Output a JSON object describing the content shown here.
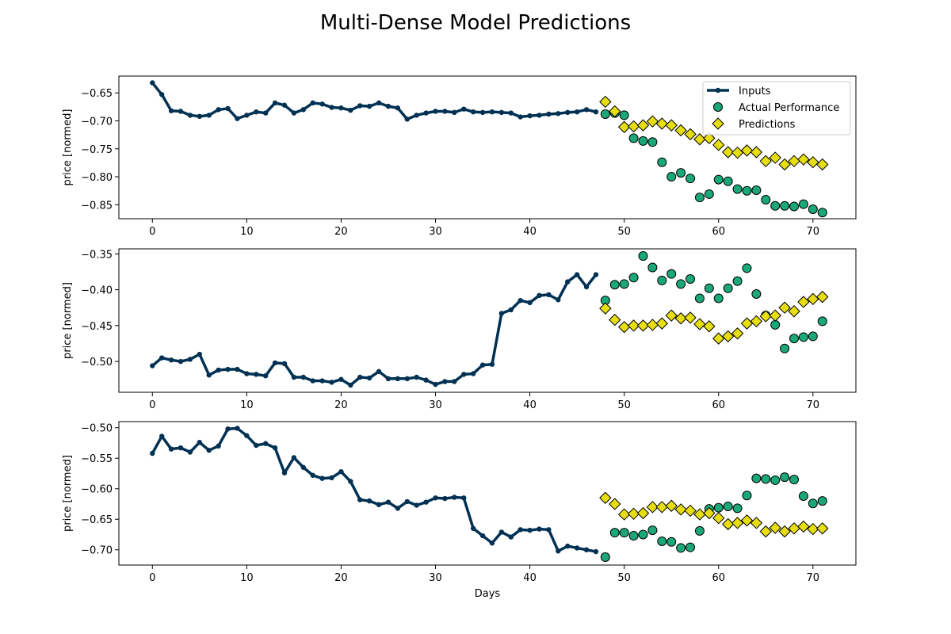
{
  "figure": {
    "title": "Multi-Dense Model Predictions",
    "colors": {
      "inputs": "#003153",
      "actual": "#1aa879",
      "predictions": "#e6dd12",
      "marker_edge": "#000000"
    }
  },
  "chart_data": [
    {
      "type": "line",
      "title": "",
      "xlabel": "",
      "ylabel": "price [normed]",
      "xlim": [
        -3.55,
        74.55
      ],
      "ylim": [
        -0.875,
        -0.62
      ],
      "xticks": [
        0,
        10,
        20,
        30,
        40,
        50,
        60,
        70
      ],
      "xtick_labels": [
        "0",
        "10",
        "20",
        "30",
        "40",
        "50",
        "60",
        "70"
      ],
      "yticks": [
        -0.85,
        -0.8,
        -0.75,
        -0.7,
        -0.65
      ],
      "ytick_labels": [
        "−0.85",
        "−0.80",
        "−0.75",
        "−0.70",
        "−0.65"
      ],
      "grid": false,
      "legend": {
        "placement": "upper right",
        "entries": [
          "Inputs",
          "Actual Performance",
          "Predictions"
        ]
      },
      "series": [
        {
          "name": "Inputs",
          "style": "line-with-dots",
          "x": [
            0,
            1,
            2,
            3,
            4,
            5,
            6,
            7,
            8,
            9,
            10,
            11,
            12,
            13,
            14,
            15,
            16,
            17,
            18,
            19,
            20,
            21,
            22,
            23,
            24,
            25,
            26,
            27,
            28,
            29,
            30,
            31,
            32,
            33,
            34,
            35,
            36,
            37,
            38,
            39,
            40,
            41,
            42,
            43,
            44,
            45,
            46,
            47
          ],
          "y": [
            -0.632,
            -0.653,
            -0.682,
            -0.683,
            -0.69,
            -0.692,
            -0.69,
            -0.68,
            -0.678,
            -0.696,
            -0.69,
            -0.684,
            -0.686,
            -0.668,
            -0.672,
            -0.686,
            -0.68,
            -0.668,
            -0.67,
            -0.676,
            -0.677,
            -0.681,
            -0.673,
            -0.674,
            -0.668,
            -0.674,
            -0.677,
            -0.697,
            -0.69,
            -0.686,
            -0.683,
            -0.683,
            -0.685,
            -0.679,
            -0.684,
            -0.685,
            -0.684,
            -0.685,
            -0.686,
            -0.693,
            -0.691,
            -0.69,
            -0.688,
            -0.687,
            -0.685,
            -0.684,
            -0.68,
            -0.684
          ]
        },
        {
          "name": "Actual Performance",
          "style": "scatter-circle",
          "x": [
            48,
            49,
            50,
            51,
            52,
            53,
            54,
            55,
            56,
            57,
            58,
            59,
            60,
            61,
            62,
            63,
            64,
            65,
            66,
            67,
            68,
            69,
            70,
            71
          ],
          "y": [
            -0.688,
            -0.686,
            -0.69,
            -0.731,
            -0.736,
            -0.738,
            -0.774,
            -0.8,
            -0.793,
            -0.803,
            -0.837,
            -0.831,
            -0.805,
            -0.808,
            -0.822,
            -0.825,
            -0.824,
            -0.841,
            -0.852,
            -0.852,
            -0.853,
            -0.849,
            -0.858,
            -0.864
          ]
        },
        {
          "name": "Predictions",
          "style": "scatter-diamond",
          "x": [
            48,
            49,
            50,
            51,
            52,
            53,
            54,
            55,
            56,
            57,
            58,
            59,
            60,
            61,
            62,
            63,
            64,
            65,
            66,
            67,
            68,
            69,
            70,
            71
          ],
          "y": [
            -0.666,
            -0.683,
            -0.711,
            -0.71,
            -0.708,
            -0.701,
            -0.705,
            -0.708,
            -0.717,
            -0.724,
            -0.733,
            -0.731,
            -0.743,
            -0.756,
            -0.757,
            -0.753,
            -0.756,
            -0.772,
            -0.766,
            -0.778,
            -0.772,
            -0.769,
            -0.774,
            -0.778
          ]
        }
      ]
    },
    {
      "type": "line",
      "title": "",
      "xlabel": "",
      "ylabel": "price [normed]",
      "xlim": [
        -3.55,
        74.55
      ],
      "ylim": [
        -0.543,
        -0.343
      ],
      "xticks": [
        0,
        10,
        20,
        30,
        40,
        50,
        60,
        70
      ],
      "xtick_labels": [
        "0",
        "10",
        "20",
        "30",
        "40",
        "50",
        "60",
        "70"
      ],
      "yticks": [
        -0.5,
        -0.45,
        -0.4,
        -0.35
      ],
      "ytick_labels": [
        "−0.50",
        "−0.45",
        "−0.40",
        "−0.35"
      ],
      "grid": false,
      "legend": null,
      "series": [
        {
          "name": "Inputs",
          "style": "line-with-dots",
          "x": [
            0,
            1,
            2,
            3,
            4,
            5,
            6,
            7,
            8,
            9,
            10,
            11,
            12,
            13,
            14,
            15,
            16,
            17,
            18,
            19,
            20,
            21,
            22,
            23,
            24,
            25,
            26,
            27,
            28,
            29,
            30,
            31,
            32,
            33,
            34,
            35,
            36,
            37,
            38,
            39,
            40,
            41,
            42,
            43,
            44,
            45,
            46,
            47
          ],
          "y": [
            -0.506,
            -0.495,
            -0.498,
            -0.5,
            -0.497,
            -0.49,
            -0.519,
            -0.512,
            -0.511,
            -0.511,
            -0.517,
            -0.518,
            -0.52,
            -0.502,
            -0.503,
            -0.522,
            -0.522,
            -0.527,
            -0.527,
            -0.529,
            -0.525,
            -0.533,
            -0.522,
            -0.523,
            -0.514,
            -0.524,
            -0.524,
            -0.524,
            -0.522,
            -0.526,
            -0.532,
            -0.528,
            -0.528,
            -0.518,
            -0.517,
            -0.505,
            -0.504,
            -0.433,
            -0.428,
            -0.415,
            -0.418,
            -0.408,
            -0.407,
            -0.414,
            -0.389,
            -0.379,
            -0.396,
            -0.379
          ]
        },
        {
          "name": "Actual Performance",
          "style": "scatter-circle",
          "x": [
            48,
            49,
            50,
            51,
            52,
            53,
            54,
            55,
            56,
            57,
            58,
            59,
            60,
            61,
            62,
            63,
            64,
            65,
            66,
            67,
            68,
            69,
            70,
            71
          ],
          "y": [
            -0.415,
            -0.393,
            -0.392,
            -0.383,
            -0.353,
            -0.369,
            -0.387,
            -0.378,
            -0.392,
            -0.385,
            -0.412,
            -0.398,
            -0.412,
            -0.398,
            -0.388,
            -0.37,
            -0.406,
            -0.436,
            -0.449,
            -0.482,
            -0.468,
            -0.466,
            -0.465,
            -0.444
          ]
        },
        {
          "name": "Predictions",
          "style": "scatter-diamond",
          "x": [
            48,
            49,
            50,
            51,
            52,
            53,
            54,
            55,
            56,
            57,
            58,
            59,
            60,
            61,
            62,
            63,
            64,
            65,
            66,
            67,
            68,
            69,
            70,
            71
          ],
          "y": [
            -0.426,
            -0.442,
            -0.452,
            -0.45,
            -0.45,
            -0.449,
            -0.447,
            -0.436,
            -0.44,
            -0.439,
            -0.448,
            -0.451,
            -0.468,
            -0.465,
            -0.461,
            -0.447,
            -0.444,
            -0.437,
            -0.436,
            -0.425,
            -0.43,
            -0.417,
            -0.413,
            -0.41
          ]
        }
      ]
    },
    {
      "type": "line",
      "title": "",
      "xlabel": "Days",
      "ylabel": "price [normed]",
      "xlim": [
        -3.55,
        74.55
      ],
      "ylim": [
        -0.725,
        -0.49
      ],
      "xticks": [
        0,
        10,
        20,
        30,
        40,
        50,
        60,
        70
      ],
      "xtick_labels": [
        "0",
        "10",
        "20",
        "30",
        "40",
        "50",
        "60",
        "70"
      ],
      "yticks": [
        -0.7,
        -0.65,
        -0.6,
        -0.55,
        -0.5
      ],
      "ytick_labels": [
        "−0.70",
        "−0.65",
        "−0.60",
        "−0.55",
        "−0.50"
      ],
      "grid": false,
      "legend": null,
      "series": [
        {
          "name": "Inputs",
          "style": "line-with-dots",
          "x": [
            0,
            1,
            2,
            3,
            4,
            5,
            6,
            7,
            8,
            9,
            10,
            11,
            12,
            13,
            14,
            15,
            16,
            17,
            18,
            19,
            20,
            21,
            22,
            23,
            24,
            25,
            26,
            27,
            28,
            29,
            30,
            31,
            32,
            33,
            34,
            35,
            36,
            37,
            38,
            39,
            40,
            41,
            42,
            43,
            44,
            45,
            46,
            47
          ],
          "y": [
            -0.542,
            -0.514,
            -0.535,
            -0.533,
            -0.54,
            -0.524,
            -0.537,
            -0.53,
            -0.502,
            -0.501,
            -0.513,
            -0.529,
            -0.526,
            -0.533,
            -0.574,
            -0.549,
            -0.565,
            -0.578,
            -0.583,
            -0.582,
            -0.572,
            -0.588,
            -0.618,
            -0.62,
            -0.626,
            -0.622,
            -0.632,
            -0.621,
            -0.627,
            -0.622,
            -0.615,
            -0.616,
            -0.614,
            -0.615,
            -0.665,
            -0.677,
            -0.689,
            -0.671,
            -0.679,
            -0.667,
            -0.668,
            -0.666,
            -0.667,
            -0.702,
            -0.694,
            -0.697,
            -0.7,
            -0.703
          ]
        },
        {
          "name": "Actual Performance",
          "style": "scatter-circle",
          "x": [
            48,
            49,
            50,
            51,
            52,
            53,
            54,
            55,
            56,
            57,
            58,
            59,
            60,
            61,
            62,
            63,
            64,
            65,
            66,
            67,
            68,
            69,
            70,
            71
          ],
          "y": [
            -0.712,
            -0.672,
            -0.672,
            -0.677,
            -0.675,
            -0.668,
            -0.686,
            -0.687,
            -0.697,
            -0.696,
            -0.669,
            -0.633,
            -0.631,
            -0.629,
            -0.632,
            -0.611,
            -0.583,
            -0.584,
            -0.586,
            -0.581,
            -0.585,
            -0.612,
            -0.624,
            -0.62
          ]
        },
        {
          "name": "Predictions",
          "style": "scatter-diamond",
          "x": [
            48,
            49,
            50,
            51,
            52,
            53,
            54,
            55,
            56,
            57,
            58,
            59,
            60,
            61,
            62,
            63,
            64,
            65,
            66,
            67,
            68,
            69,
            70,
            71
          ],
          "y": [
            -0.615,
            -0.625,
            -0.642,
            -0.641,
            -0.64,
            -0.63,
            -0.63,
            -0.628,
            -0.634,
            -0.636,
            -0.642,
            -0.64,
            -0.648,
            -0.658,
            -0.656,
            -0.652,
            -0.656,
            -0.67,
            -0.664,
            -0.67,
            -0.665,
            -0.662,
            -0.666,
            -0.665
          ]
        }
      ]
    }
  ]
}
